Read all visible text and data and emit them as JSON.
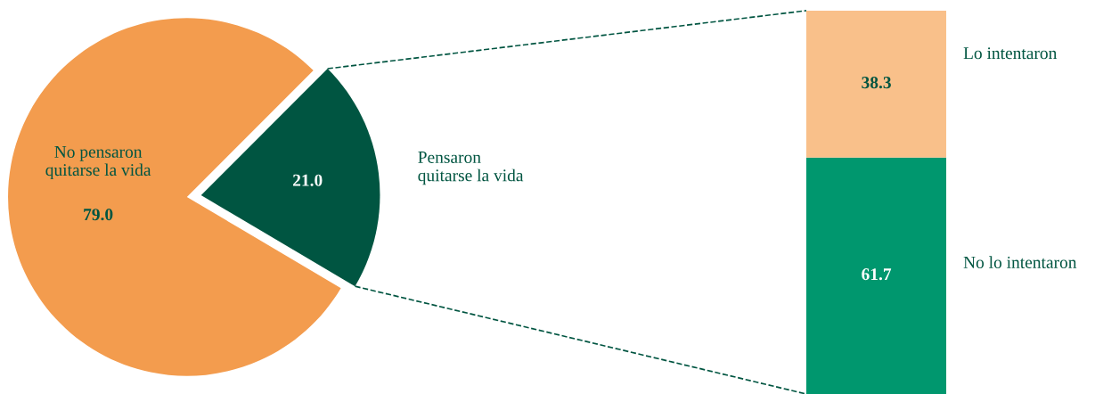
{
  "chart_data": [
    {
      "type": "pie",
      "categories": [
        "No pensaron quitarse la vida",
        "Pensaron quitarse la vida"
      ],
      "values": [
        79.0,
        21.0
      ],
      "value_labels": [
        "79.0",
        "21.0"
      ],
      "colors": [
        "#f39c4e",
        "#005541"
      ]
    },
    {
      "type": "bar",
      "stacked": true,
      "categories": [
        null
      ],
      "data_labels": true,
      "legend": false,
      "series": [
        {
          "name": "No lo intentaron",
          "color": "#00976e",
          "values": [
            61.7
          ]
        },
        {
          "name": "Lo intentaron",
          "color": "#f9c08a",
          "values": [
            38.3
          ]
        }
      ]
    }
  ]
}
